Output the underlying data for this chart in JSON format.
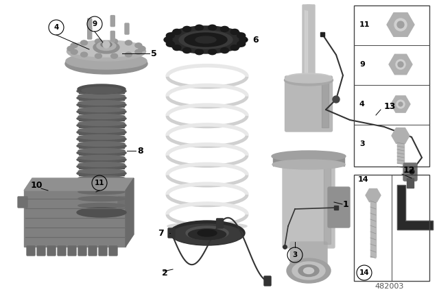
{
  "bg_color": "#ffffff",
  "diagram_number": "482003",
  "gray_dark": "#707070",
  "gray_mid": "#909090",
  "gray_light": "#b8b8b8",
  "gray_silver": "#c8c8c8",
  "gray_very_dark": "#404040",
  "black": "#1a1a1a",
  "white_spring": "#e8e8e8",
  "strut_color": "#b0b0b0",
  "boot_color": "#606060",
  "ecu_color": "#808080",
  "ring_dark": "#303030",
  "ring_mid": "#4a4a4a"
}
